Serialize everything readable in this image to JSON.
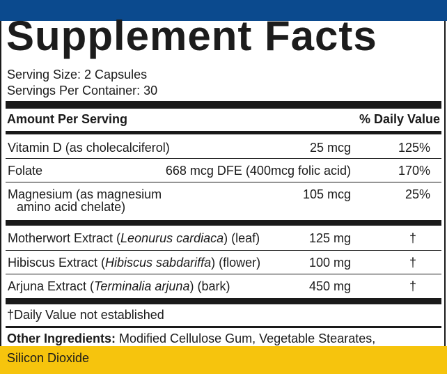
{
  "title": "Supplement Facts",
  "serving_size": "Serving Size: 2 Capsules",
  "servings_per_container": "Servings Per Container: 30",
  "header": {
    "amount_per_serving": "Amount Per Serving",
    "daily_value": "% Daily Value"
  },
  "nutrients": [
    {
      "name": "Vitamin D (as cholecalciferol)",
      "amount": "25 mcg",
      "dv": "125%"
    },
    {
      "name": "Folate",
      "amount": "668 mcg DFE (400mcg folic acid)",
      "dv": "170%"
    },
    {
      "name_line1": "Magnesium (as magnesium",
      "name_line2": "amino acid chelate)",
      "amount": "105 mcg",
      "dv": "25%"
    }
  ],
  "extracts": [
    {
      "name_pre": "Motherwort Extract (",
      "latin": "Leonurus cardiaca",
      "name_post": ") (leaf)",
      "amount": "125 mg",
      "dv": "†"
    },
    {
      "name_pre": "Hibiscus Extract (",
      "latin": "Hibiscus sabdariffa",
      "name_post": ") (flower)",
      "amount": "100 mg",
      "dv": "†"
    },
    {
      "name_pre": "Arjuna Extract (",
      "latin": "Terminalia arjuna",
      "name_post": ") (bark)",
      "amount": "450 mg",
      "dv": "†"
    }
  ],
  "footnote": "†Daily Value not established",
  "other_ingredients": {
    "label": "Other Ingredients:",
    "line1": " Modified Cellulose Gum, Vegetable Stearates,",
    "line2": "Silicon Dioxide"
  },
  "colors": {
    "top_bar": "#0b4a8e",
    "bottom_bar": "#f6c40d",
    "text": "#1a1a1a"
  }
}
